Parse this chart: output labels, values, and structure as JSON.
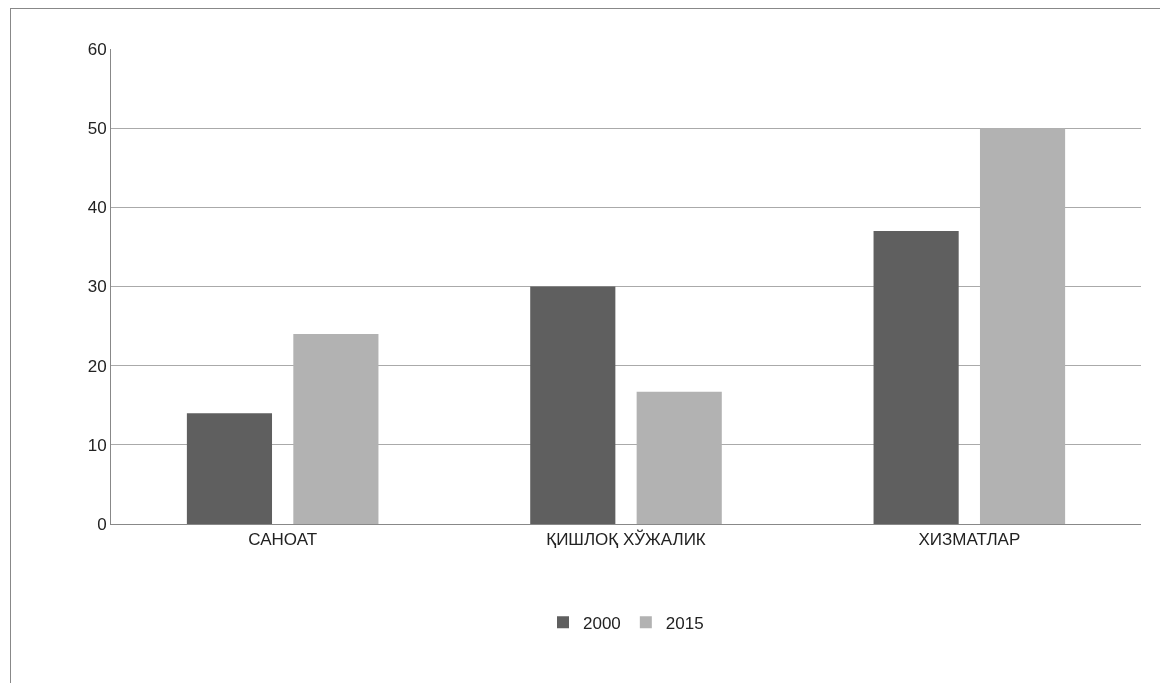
{
  "chart_data": {
    "type": "bar",
    "categories": [
      "САНОАТ",
      "ҚИШЛОҚ ХЎЖАЛИК",
      "ХИЗМАТЛАР"
    ],
    "series": [
      {
        "name": "2000",
        "color": "#5f5f5f",
        "values": [
          14,
          30,
          37
        ]
      },
      {
        "name": "2015",
        "color": "#b2b2b2",
        "values": [
          24,
          16.7,
          50
        ]
      }
    ],
    "ylim": [
      0,
      60
    ],
    "yticks": [
      0,
      10,
      20,
      30,
      40,
      50,
      60
    ],
    "grid": "y",
    "legend": "bottom"
  }
}
